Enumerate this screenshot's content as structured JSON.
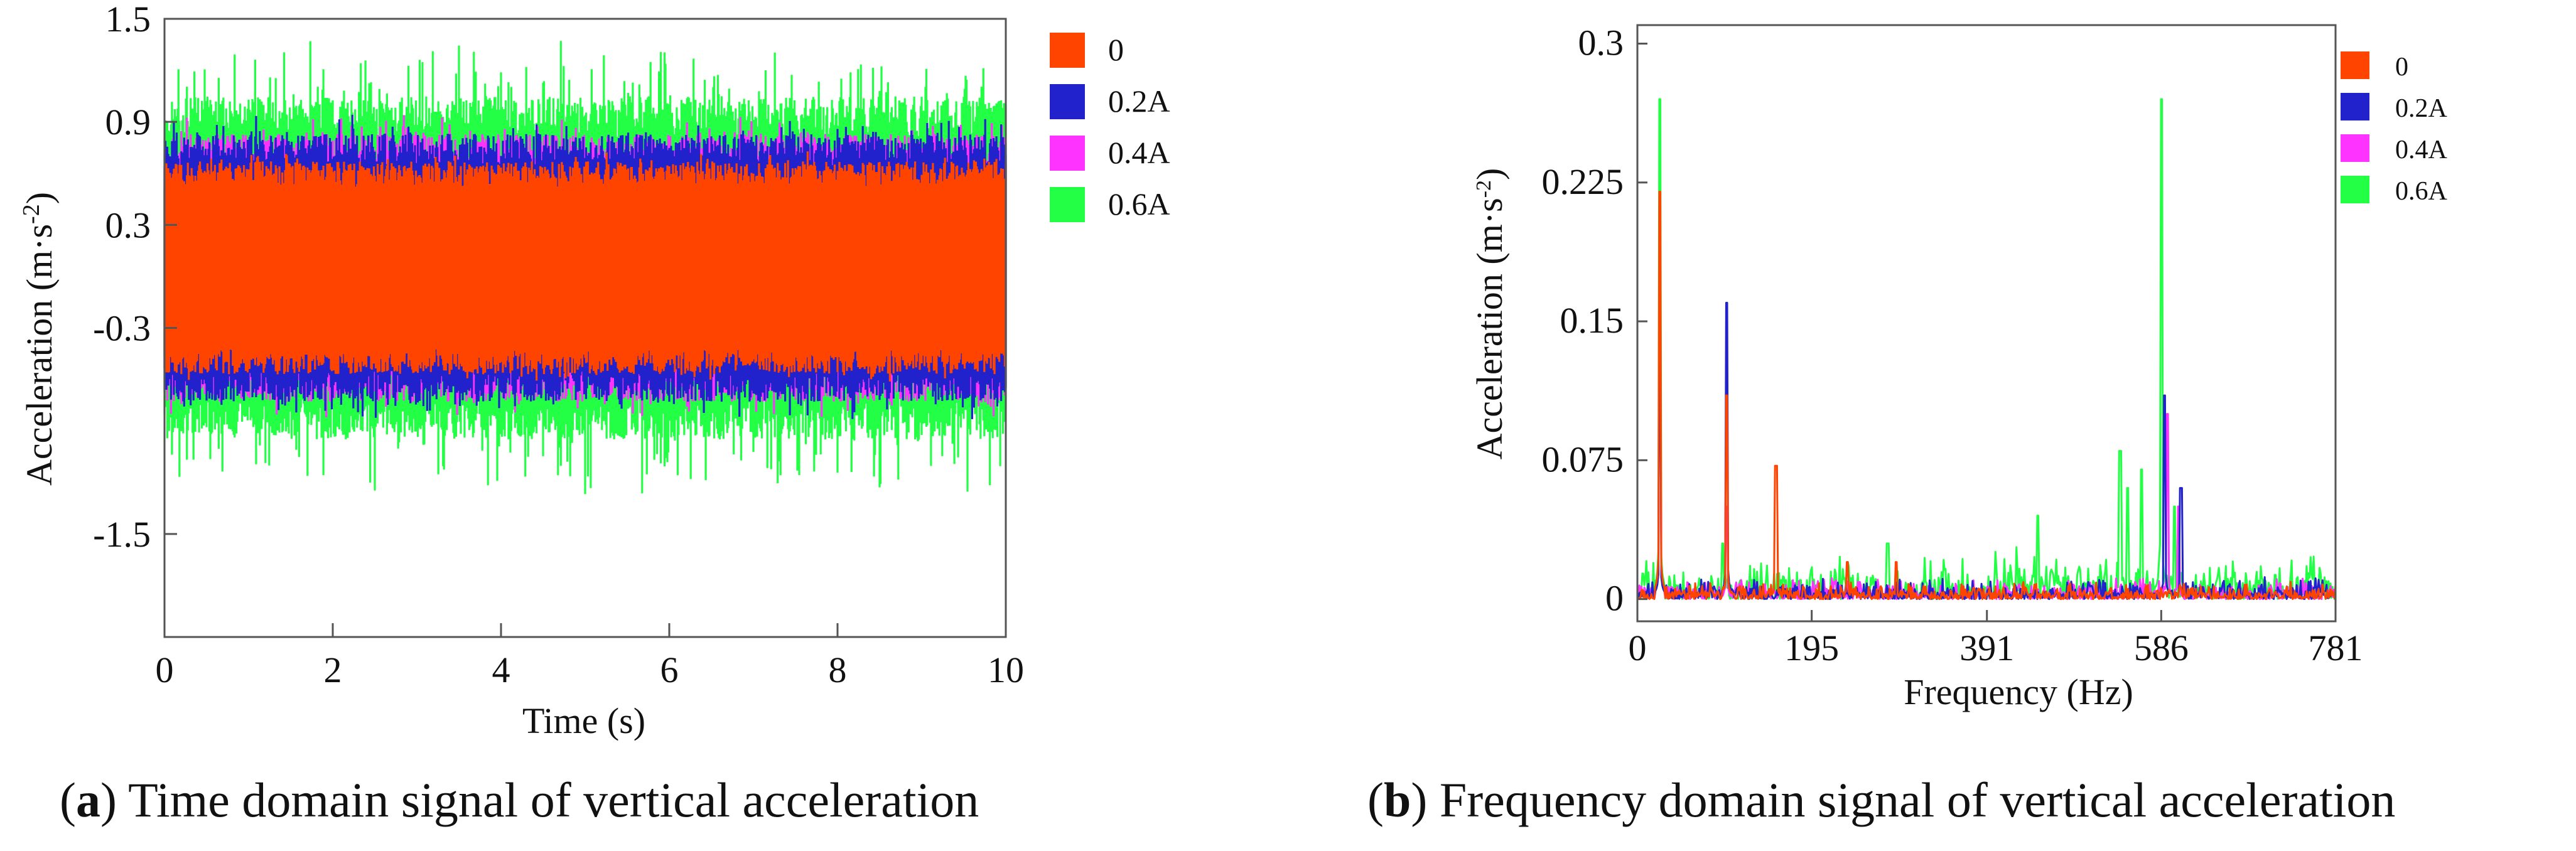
{
  "chart_data": [
    {
      "type": "line",
      "id": "a",
      "title": "",
      "xlabel": "Time (s)",
      "ylabel_main": "Acceleration (m·s",
      "ylabel_sup": "-2",
      "ylabel_end": ")",
      "xlim": [
        0,
        10
      ],
      "ylim": [
        -2.1,
        1.5
      ],
      "xticks": [
        0,
        2,
        4,
        6,
        8,
        10
      ],
      "xtick_labels": [
        "0",
        "2",
        "4",
        "6",
        "8",
        "10"
      ],
      "yticks": [
        1.5,
        0.9,
        0.3,
        -0.3,
        -1.5
      ],
      "ytick_labels": [
        "1.5",
        "0.9",
        "0.3",
        "-0.3",
        "-1.5"
      ],
      "legend": [
        "0",
        "0.2A",
        "0.4A",
        "0.6A"
      ],
      "legend_position": "right",
      "series": [
        {
          "name": "0.6A",
          "color": "#22ff44",
          "center": 0.05,
          "amplitude": 1.0,
          "spike": 0.38
        },
        {
          "name": "0.4A",
          "color": "#ff33ff",
          "center": 0.05,
          "amplitude": 0.78,
          "spike": 0.12
        },
        {
          "name": "0.2A",
          "color": "#2222cc",
          "center": 0.05,
          "amplitude": 0.78,
          "spike": 0.12
        },
        {
          "name": "0",
          "color": "#ff4400",
          "center": 0.05,
          "amplitude": 0.62,
          "spike": 0.06
        }
      ]
    },
    {
      "type": "line",
      "id": "b",
      "title": "",
      "xlabel": "Frequency (Hz)",
      "ylabel_main": "Acceleration (m·s",
      "ylabel_sup": "-2",
      "ylabel_end": ")",
      "xlim": [
        0,
        781
      ],
      "ylim": [
        -0.012,
        0.31
      ],
      "xticks": [
        0,
        195,
        391,
        586,
        781
      ],
      "xtick_labels": [
        "0",
        "195",
        "391",
        "586",
        "781"
      ],
      "yticks": [
        0.3,
        0.225,
        0.15,
        0.075,
        0
      ],
      "ytick_labels": [
        "0.3",
        "0.225",
        "0.15",
        "0.075",
        "0"
      ],
      "legend": [
        "0",
        "0.2A",
        "0.4A",
        "0.6A"
      ],
      "legend_position": "top-right",
      "series": [
        {
          "name": "0.6A",
          "color": "#22ff44",
          "peaks": [
            [
              25,
              0.27
            ],
            [
              95,
              0.03
            ],
            [
              235,
              0.02
            ],
            [
              280,
              0.03
            ],
            [
              448,
              0.045
            ],
            [
              540,
              0.08
            ],
            [
              548,
              0.06
            ],
            [
              564,
              0.07
            ],
            [
              586,
              0.27
            ],
            [
              601,
              0.05
            ]
          ],
          "noise": 0.012
        },
        {
          "name": "0.4A",
          "color": "#ff33ff",
          "peaks": [
            [
              25,
              0.14
            ],
            [
              100,
              0.05
            ],
            [
              593,
              0.1
            ],
            [
              605,
              0.05
            ]
          ],
          "noise": 0.006
        },
        {
          "name": "0.2A",
          "color": "#2222cc",
          "peaks": [
            [
              25,
              0.14
            ],
            [
              100,
              0.16
            ],
            [
              590,
              0.11
            ],
            [
              608,
              0.06
            ]
          ],
          "noise": 0.006
        },
        {
          "name": "0",
          "color": "#ff4400",
          "peaks": [
            [
              25,
              0.22
            ],
            [
              100,
              0.11
            ],
            [
              155,
              0.072
            ],
            [
              235,
              0.02
            ],
            [
              290,
              0.02
            ]
          ],
          "noise": 0.005
        }
      ]
    }
  ],
  "captions": [
    {
      "label": "a",
      "text": "Time domain signal of vertical acceleration"
    },
    {
      "label": "b",
      "text": "Frequency domain signal of vertical acceleration"
    }
  ]
}
